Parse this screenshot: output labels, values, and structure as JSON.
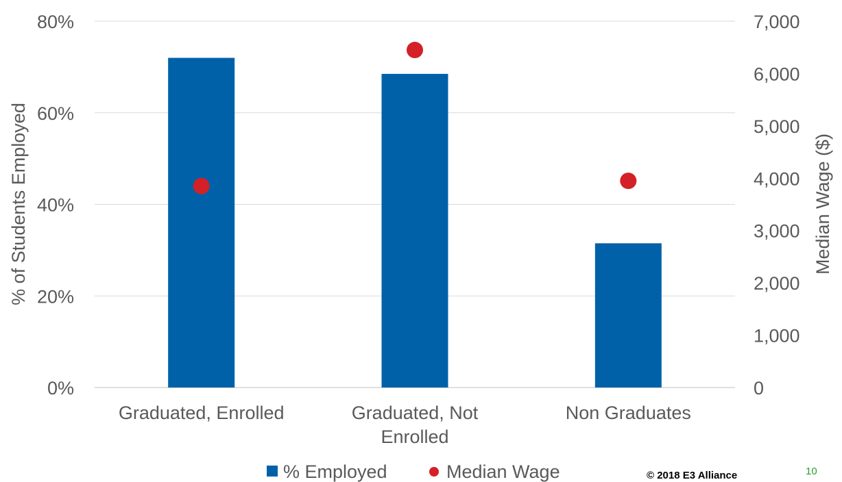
{
  "chart_data": {
    "type": "bar",
    "categories": [
      [
        "Graduated, Enrolled"
      ],
      [
        "Graduated, Not",
        "Enrolled"
      ],
      [
        "Non Graduates"
      ]
    ],
    "series": [
      {
        "name": "% Employed",
        "type": "bar",
        "axis": "left",
        "color": "#0061a8",
        "values": [
          72,
          68.5,
          31.5
        ]
      },
      {
        "name": "Median Wage",
        "type": "scatter",
        "axis": "right",
        "color": "#d42027",
        "values": [
          3850,
          6450,
          3950
        ]
      }
    ],
    "y_left": {
      "label": "% of Students Employed",
      "min": 0,
      "max": 80,
      "ticks": [
        0,
        20,
        40,
        60,
        80
      ],
      "tick_labels": [
        "0%",
        "20%",
        "40%",
        "60%",
        "80%"
      ]
    },
    "y_right": {
      "label": "Median Wage ($)",
      "min": 0,
      "max": 7000,
      "ticks": [
        0,
        1000,
        2000,
        3000,
        4000,
        5000,
        6000,
        7000
      ],
      "tick_labels": [
        "0",
        "1,000",
        "2,000",
        "3,000",
        "4,000",
        "5,000",
        "6,000",
        "7,000"
      ]
    },
    "grid": true,
    "legend_position": "bottom"
  },
  "footer": {
    "copyright": "© 2018 E3 Alliance",
    "page_number": "10"
  }
}
